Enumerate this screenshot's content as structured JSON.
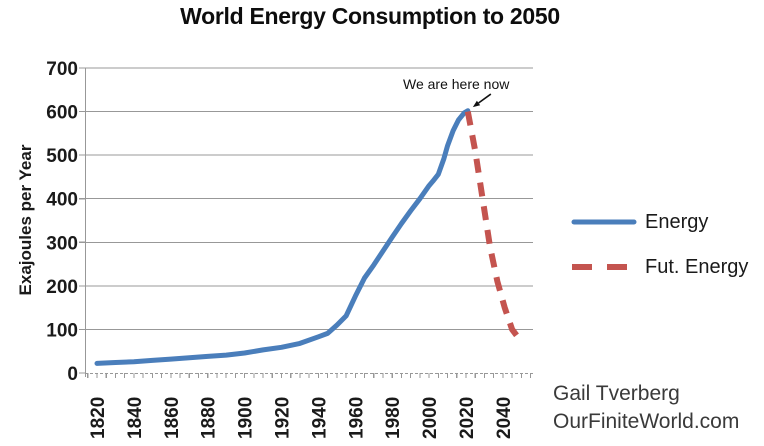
{
  "chart_data": {
    "type": "line",
    "title": "World Energy Consumption to 2050",
    "xlabel": "",
    "ylabel": "Exajoules per Year",
    "ylim": [
      0,
      700
    ],
    "xlim": [
      1813,
      2056
    ],
    "grid": "horizontal",
    "legend_position": "right",
    "y_ticks": [
      0,
      100,
      200,
      300,
      400,
      500,
      600,
      700
    ],
    "x_ticks": [
      1820,
      1840,
      1860,
      1880,
      1900,
      1920,
      1940,
      1960,
      1980,
      2000,
      2020,
      2040
    ],
    "x_minor_tick_step_years": 5,
    "annotation": {
      "text": "We are here now",
      "year": 2021,
      "value": 600
    },
    "series": [
      {
        "name": "Energy",
        "color": "#4A7EBB",
        "line_style": "solid",
        "points": [
          [
            1820,
            22
          ],
          [
            1830,
            24
          ],
          [
            1840,
            26
          ],
          [
            1850,
            29
          ],
          [
            1860,
            32
          ],
          [
            1870,
            35
          ],
          [
            1880,
            38
          ],
          [
            1890,
            41
          ],
          [
            1900,
            46
          ],
          [
            1910,
            53
          ],
          [
            1920,
            59
          ],
          [
            1930,
            68
          ],
          [
            1940,
            83
          ],
          [
            1945,
            91
          ],
          [
            1950,
            110
          ],
          [
            1955,
            131
          ],
          [
            1960,
            176
          ],
          [
            1965,
            218
          ],
          [
            1970,
            248
          ],
          [
            1975,
            280
          ],
          [
            1980,
            312
          ],
          [
            1985,
            343
          ],
          [
            1990,
            372
          ],
          [
            1995,
            400
          ],
          [
            2000,
            430
          ],
          [
            2002,
            440
          ],
          [
            2005,
            456
          ],
          [
            2008,
            492
          ],
          [
            2010,
            522
          ],
          [
            2013,
            556
          ],
          [
            2016,
            581
          ],
          [
            2019,
            597
          ],
          [
            2021,
            602
          ]
        ]
      },
      {
        "name": "Fut. Energy",
        "color": "#C4544F",
        "line_style": "dashed",
        "points": [
          [
            2021,
            600
          ],
          [
            2025,
            510
          ],
          [
            2029,
            400
          ],
          [
            2033,
            290
          ],
          [
            2037,
            210
          ],
          [
            2041,
            150
          ],
          [
            2045,
            100
          ],
          [
            2050,
            72
          ]
        ]
      }
    ]
  },
  "credit": {
    "line1": "Gail Tverberg",
    "line2": "OurFiniteWorld.com"
  },
  "colors": {
    "grid": "#989898",
    "axis": "#989898",
    "tick_text": "#1a1a1a",
    "annotation_arrow": "#111111"
  }
}
